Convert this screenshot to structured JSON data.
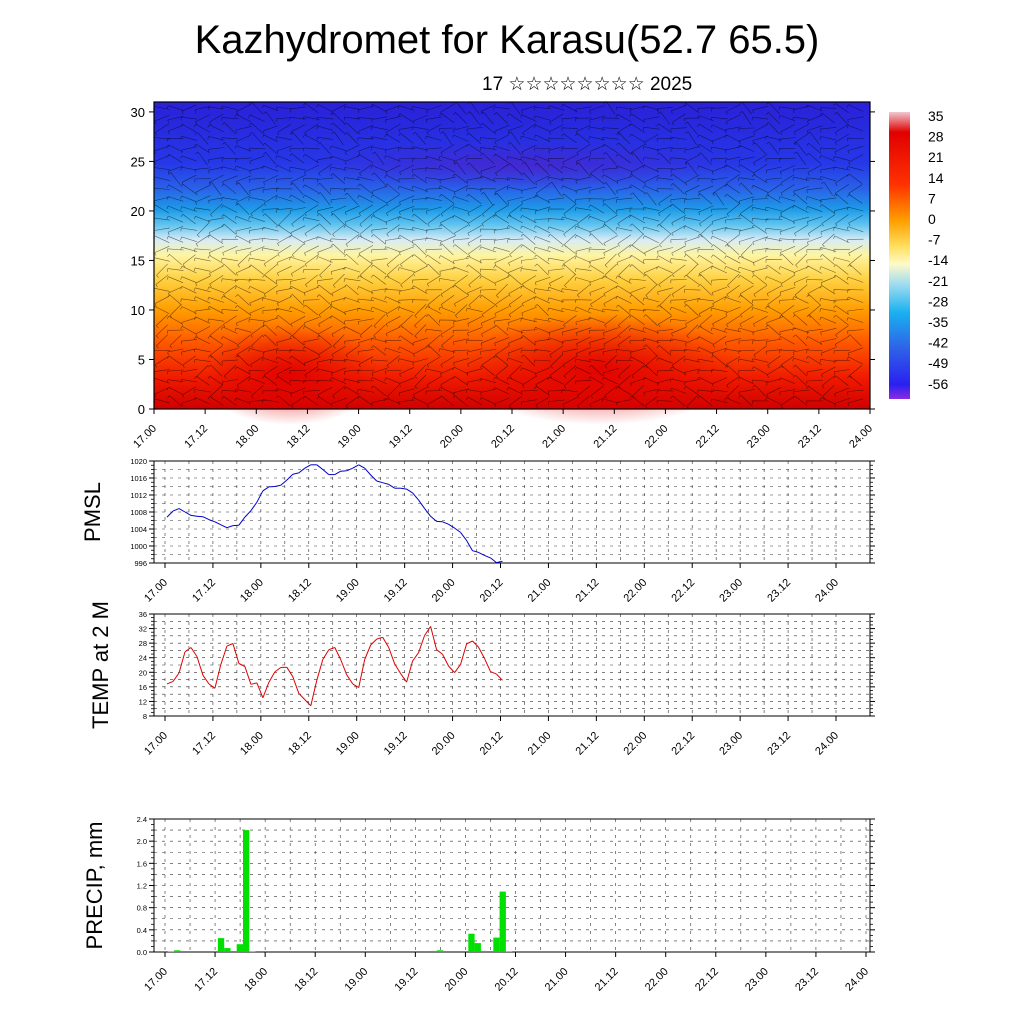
{
  "title": "Kazhydromet for Karasu(52.7 65.5)",
  "subtitle": "17 ☆☆☆☆☆☆☆☆ 2025",
  "time_ticks": [
    "17.00",
    "17.12",
    "18.00",
    "18.12",
    "19.00",
    "19.12",
    "20.00",
    "20.12",
    "21.00",
    "21.12",
    "22.00",
    "22.12",
    "23.00",
    "23.12",
    "24.00"
  ],
  "chart_data": [
    {
      "type": "heatmap",
      "title": "",
      "xlabel": "",
      "ylabel": "",
      "ylim": [
        0,
        31
      ],
      "y_ticks": [
        0,
        5,
        10,
        15,
        20,
        25,
        30
      ],
      "legend": "right",
      "colorbar_labels": [
        "35",
        "28",
        "21",
        "14",
        "7",
        "0",
        "-7",
        "-14",
        "-21",
        "-28",
        "-35",
        "-42",
        "-49",
        "-56"
      ],
      "colorbar_range": [
        -63,
        42
      ],
      "colors": {
        "cold": "#2600ff",
        "cool": "#19bdf0",
        "neutral": "#fffac8",
        "warm": "#ffaa00",
        "hot": "#e60000"
      },
      "note_overlay": "wind barbs"
    },
    {
      "type": "line",
      "ylabel": "PMSL",
      "ylim": [
        996,
        1020
      ],
      "y_ticks": [
        996,
        1000,
        1004,
        1008,
        1012,
        1016,
        1020
      ],
      "color": "#0000cc",
      "values": [
        1006.8,
        1008.2,
        1008.8,
        1008.0,
        1007.2,
        1007.0,
        1006.9,
        1006.2,
        1005.7,
        1005.0,
        1004.3,
        1004.8,
        1004.9,
        1006.8,
        1008.3,
        1010.3,
        1013.0,
        1013.9,
        1014.0,
        1014.3,
        1015.5,
        1016.9,
        1017.2,
        1018.3,
        1019.1,
        1019.1,
        1018.0,
        1016.8,
        1016.8,
        1017.6,
        1017.7,
        1018.3,
        1019.1,
        1018.3,
        1016.7,
        1015.3,
        1014.9,
        1014.5,
        1013.6,
        1013.6,
        1013.4,
        1012.5,
        1010.8,
        1008.8,
        1007.0,
        1005.8,
        1005.7,
        1005.1,
        1004.2,
        1003.2,
        1001.3,
        998.9,
        998.5,
        997.8,
        997.2,
        996.1,
        996.4
      ]
    },
    {
      "type": "line",
      "ylabel": "TEMP at 2 M",
      "ylim": [
        8,
        36
      ],
      "y_ticks": [
        8,
        12,
        16,
        20,
        24,
        28,
        32,
        36
      ],
      "color": "#e00000",
      "values": [
        16.8,
        17.5,
        19.8,
        25.6,
        26.8,
        24.3,
        19.2,
        16.8,
        15.6,
        22.2,
        27.2,
        27.9,
        22.4,
        21.6,
        16.7,
        17.1,
        13.0,
        17.2,
        20.1,
        21.3,
        21.4,
        18.8,
        14.2,
        12.5,
        10.8,
        17.8,
        23.5,
        26.2,
        26.8,
        23.5,
        19.3,
        16.8,
        15.8,
        23.5,
        27.5,
        29.1,
        29.6,
        26.8,
        22.3,
        19.6,
        17.3,
        23.1,
        25.4,
        30.1,
        32.6,
        26.2,
        24.9,
        21.7,
        19.9,
        22.2,
        27.8,
        28.6,
        26.9,
        23.8,
        20.2,
        19.5,
        17.8
      ]
    },
    {
      "type": "bar",
      "ylabel": "PRECIP, mm",
      "ylim": [
        0,
        2.4
      ],
      "y_ticks": [
        "0.0",
        "0.4",
        "0.8",
        "1.2",
        "1.6",
        "2.0",
        "2.4"
      ],
      "color": "#00e000",
      "values": [
        0.01,
        0.03,
        0.0,
        0.0,
        0.0,
        0.0,
        0.0,
        0.0,
        0.25,
        0.07,
        0.0,
        0.14,
        2.2,
        0.01,
        0,
        0,
        0,
        0,
        0,
        0,
        0,
        0,
        0,
        0,
        0,
        0,
        0,
        0,
        0,
        0,
        0,
        0,
        0,
        0,
        0,
        0,
        0,
        0,
        0,
        0,
        0,
        0,
        0.02,
        0.03,
        0.0,
        0.0,
        0.0,
        0.0,
        0.33,
        0.16,
        0.02,
        0.0,
        0.26,
        1.09,
        0.01,
        0.0
      ]
    }
  ]
}
